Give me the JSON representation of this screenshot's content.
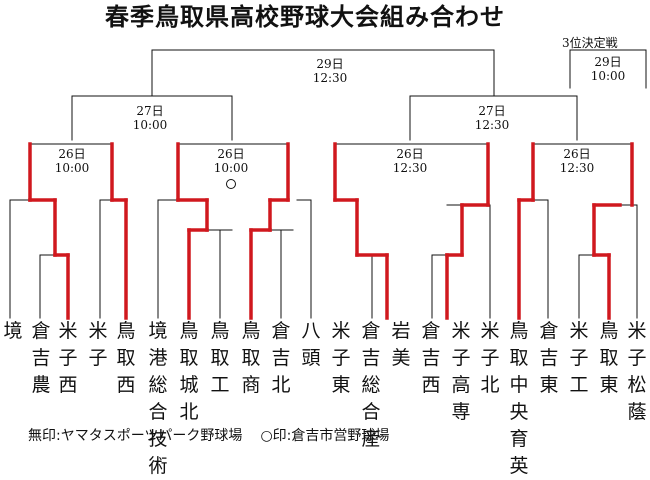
{
  "title": "春季鳥取県高校野球大会組み合わせ",
  "third_place": {
    "label": "3位決定戦",
    "date": "29日",
    "time": "10:00"
  },
  "final": {
    "date": "29日",
    "time": "12:30"
  },
  "semifinals": [
    {
      "date": "27日",
      "time": "10:00"
    },
    {
      "date": "27日",
      "time": "12:30"
    }
  ],
  "quarterfinals": [
    {
      "date": "26日",
      "time": "10:00",
      "venue_mark": ""
    },
    {
      "date": "26日",
      "time": "10:00",
      "venue_mark": "○"
    },
    {
      "date": "26日",
      "time": "12:30",
      "venue_mark": ""
    },
    {
      "date": "26日",
      "time": "12:30",
      "venue_mark": ""
    }
  ],
  "teams": [
    "境",
    "倉吉農",
    "米子西",
    "米子",
    "鳥取西",
    "境港総合技術",
    "鳥取城北",
    "鳥取工",
    "鳥取商",
    "倉吉北",
    "八頭",
    "米子東",
    "倉吉総合産",
    "岩美",
    "倉吉西",
    "米子高専",
    "米子北",
    "鳥取中央育英",
    "倉吉東",
    "米子工",
    "鳥取東",
    "米子松蔭"
  ],
  "footer": {
    "legend_none": "無印:ヤマタスポーツパーク野球場",
    "legend_circle": "○印:倉吉市営野球場"
  }
}
